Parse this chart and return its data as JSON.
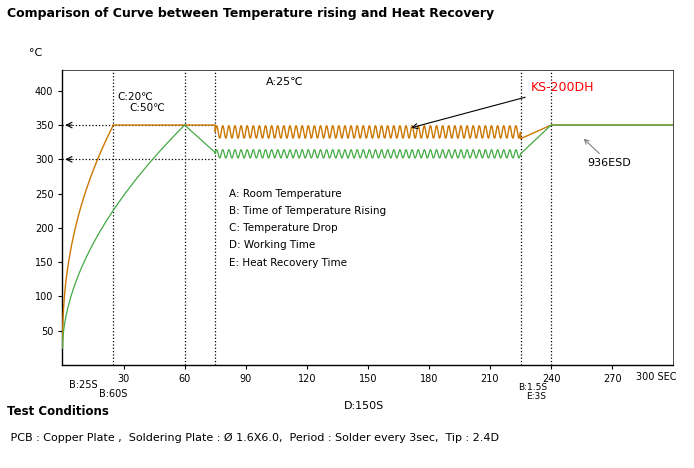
{
  "title": "Comparison of Curve between Temperature rising and Heat Recovery",
  "ylabel": "°C",
  "xlabel_end": "300 SEC",
  "xlim": [
    0,
    300
  ],
  "ylim": [
    0,
    430
  ],
  "xticks": [
    30,
    60,
    90,
    120,
    150,
    180,
    210,
    240,
    270,
    300
  ],
  "yticks": [
    50,
    100,
    150,
    200,
    250,
    300,
    350,
    400
  ],
  "bg_color": "#ffffff",
  "ks_color": "#cc7700",
  "green_color": "#44aa44",
  "label_ks200dh": "KS-200DH",
  "label_936esd": "936ESD",
  "legend_text": [
    "A: Room Temperature",
    "B: Time of Temperature Rising",
    "C: Temperature Drop",
    "D: Working Time",
    "E: Heat Recovery Time"
  ],
  "ann_A": "A:25℃",
  "ann_C20": "C:20℃",
  "ann_C50": "C:50℃",
  "ann_B25S": "B:25S",
  "ann_B60S": "B:60S",
  "ann_D150S": "D:150S",
  "ann_B15S": "B:1.5S",
  "ann_E3S": "E:3S",
  "tc_title": "Test Conditions",
  "tc_text": " PCB : Copper Plate ,  Soldering Plate : Ø 1.6X6.0,  Period : Solder every 3sec,  Tip : 2.4D"
}
